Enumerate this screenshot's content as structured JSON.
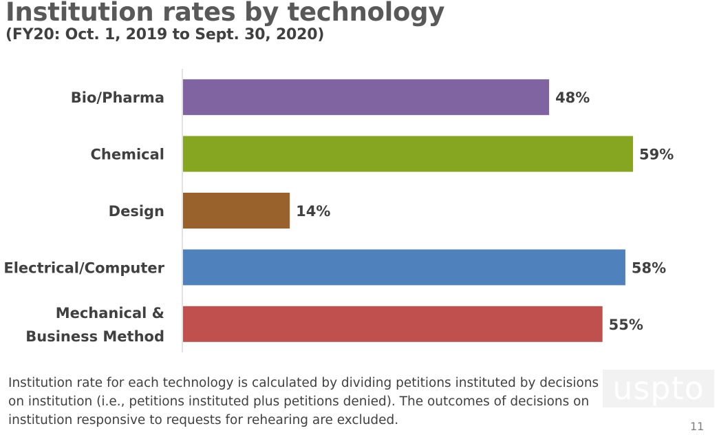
{
  "chart_data": {
    "type": "bar",
    "orientation": "horizontal",
    "title": "Institution rates by technology",
    "subtitle": "(FY20: Oct. 1, 2019 to Sept. 30, 2020)",
    "categories": [
      "Bio/Pharma",
      "Chemical",
      "Design",
      "Electrical/Computer",
      "Mechanical & Business Method"
    ],
    "category_lines": [
      [
        "Bio/Pharma"
      ],
      [
        "Chemical"
      ],
      [
        "Design"
      ],
      [
        "Electrical/Computer"
      ],
      [
        "Mechanical &",
        "Business Method"
      ]
    ],
    "values": [
      48,
      59,
      14,
      58,
      55
    ],
    "value_labels": [
      "48%",
      "59%",
      "14%",
      "58%",
      "55%"
    ],
    "colors": [
      "#8064a2",
      "#86a621",
      "#99612b",
      "#4f81bd",
      "#c0504d"
    ],
    "xlim": [
      0,
      60
    ],
    "xlabel": "",
    "ylabel": "",
    "grid": false,
    "legend": "none"
  },
  "footnote": "Institution rate for each technology is calculated by dividing petitions instituted by decisions on institution (i.e., petitions instituted plus petitions denied). The outcomes of decisions on institution responsive to requests for rehearing are excluded.",
  "logo_text": "uspto",
  "page_number": "11"
}
